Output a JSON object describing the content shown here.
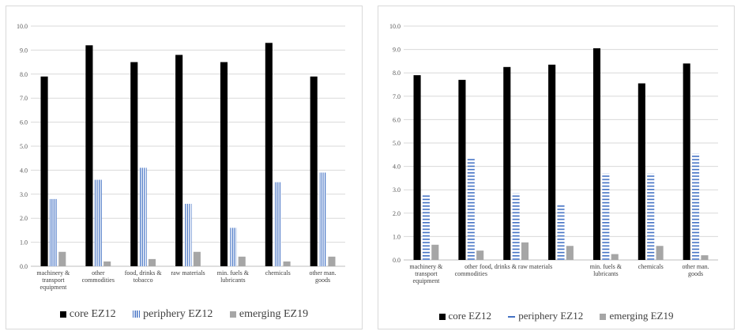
{
  "chart_data": [
    {
      "type": "bar",
      "categories": [
        "machinery & transport equipment",
        "other commodities",
        "food, drinks & tobacco",
        "raw materials",
        "min. fuels & lubricants",
        "chemicals",
        "other man. goods"
      ],
      "series": [
        {
          "name": "core EZ12",
          "values": [
            7.9,
            9.2,
            8.5,
            8.8,
            8.5,
            9.3,
            7.9
          ],
          "color": "#000000"
        },
        {
          "name": "periphery EZ12",
          "values": [
            2.8,
            3.6,
            4.1,
            2.6,
            1.6,
            3.5,
            3.9
          ],
          "color": "#4472c4",
          "pattern": "vertical-lines"
        },
        {
          "name": "emerging EZ19",
          "values": [
            0.6,
            0.2,
            0.3,
            0.6,
            0.4,
            0.2,
            0.4
          ],
          "color": "#a6a6a6"
        }
      ],
      "yticks": [
        "0.0",
        "1.0",
        "2.0",
        "3.0",
        "4.0",
        "5.0",
        "6.0",
        "7.0",
        "8.0",
        "9.0",
        "10.0"
      ],
      "ylim": [
        0,
        10
      ],
      "grid": true,
      "legend_position": "bottom"
    },
    {
      "type": "bar",
      "categories": [
        "machinery & transport equipment",
        "other commodities",
        "food, drinks & tobacco",
        "raw materials",
        "min. fuels & lubricants",
        "chemicals",
        "other man. goods"
      ],
      "series": [
        {
          "name": "core EZ12",
          "values": [
            7.9,
            7.7,
            8.25,
            8.35,
            9.05,
            7.55,
            8.4
          ],
          "color": "#000000"
        },
        {
          "name": "periphery EZ12",
          "values": [
            2.8,
            4.35,
            2.85,
            2.35,
            3.7,
            3.7,
            4.55
          ],
          "color": "#4472c4",
          "pattern": "horizontal-lines"
        },
        {
          "name": "emerging EZ19",
          "values": [
            0.65,
            0.4,
            0.75,
            0.6,
            0.25,
            0.6,
            0.2
          ],
          "color": "#a6a6a6"
        }
      ],
      "yticks": [
        "0.0",
        "1.0",
        "2.0",
        "3.0",
        "4.0",
        "5.0",
        "6.0",
        "7.0",
        "8.0",
        "9.0",
        "10.0"
      ],
      "ylim": [
        0,
        10
      ],
      "grid": true,
      "legend_position": "bottom"
    }
  ]
}
